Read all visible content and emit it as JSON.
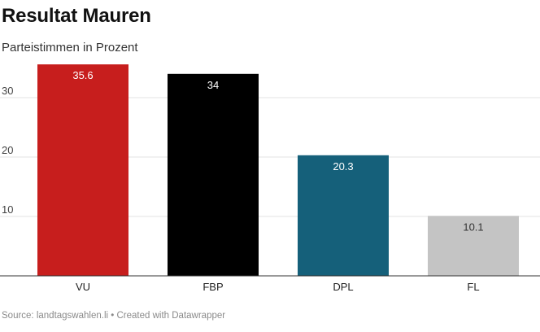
{
  "chart_data": {
    "type": "bar",
    "title": "Resultat Mauren",
    "subtitle": "Parteistimmen in Prozent",
    "categories": [
      "VU",
      "FBP",
      "DPL",
      "FL"
    ],
    "values": [
      35.6,
      34,
      20.3,
      10.1
    ],
    "value_labels": [
      "35.6",
      "34",
      "20.3",
      "10.1"
    ],
    "colors": [
      "#c71e1d",
      "#000000",
      "#15607a",
      "#c4c4c4"
    ],
    "label_colors": [
      "#ffffff",
      "#ffffff",
      "#ffffff",
      "#333333"
    ],
    "xlabel": "",
    "ylabel": "",
    "ylim": [
      0,
      36
    ],
    "yticks": [
      10,
      20,
      30
    ],
    "grid": true,
    "source": "Source: landtagswahlen.li",
    "credit": "Created with Datawrapper"
  }
}
